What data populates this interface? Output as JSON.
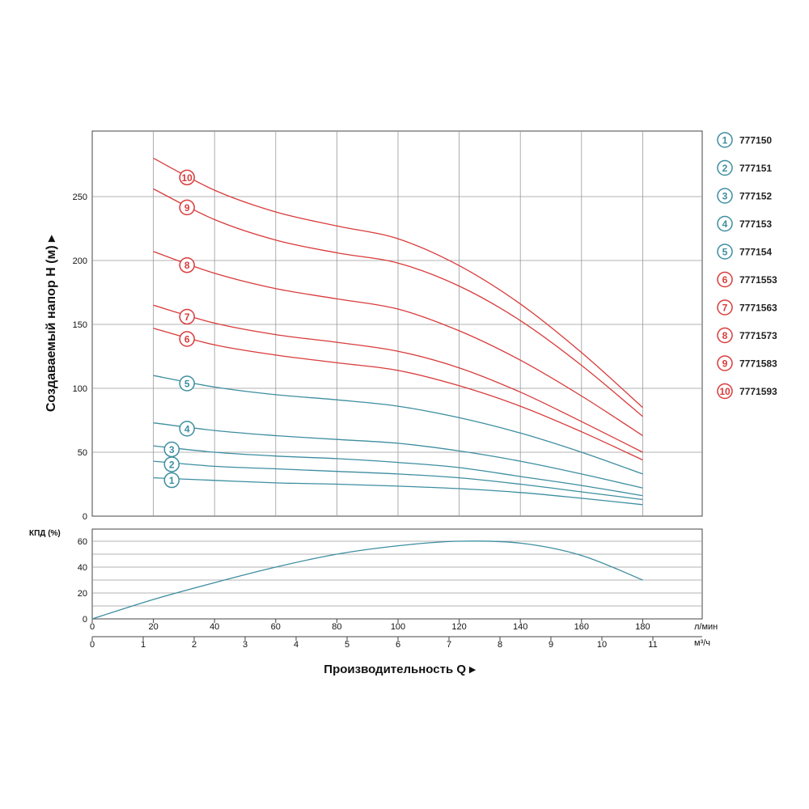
{
  "colors": {
    "teal": "#3d8ea0",
    "red": "#d93b3b",
    "grid": "#9a9a9a",
    "axis": "#444444"
  },
  "chart_data": [
    {
      "type": "line",
      "ylabel": "Создаваемый напор H (м) ▸",
      "ylim": [
        0,
        300
      ],
      "yticks": [
        0,
        50,
        100,
        150,
        200,
        250
      ],
      "xlim": [
        0,
        200
      ],
      "grid": true,
      "legend_position": "right",
      "series": [
        {
          "name": "777150",
          "badge": "1",
          "color": "teal",
          "x": [
            20,
            40,
            60,
            80,
            100,
            120,
            140,
            160,
            180
          ],
          "y": [
            30,
            28,
            26,
            25,
            23.5,
            21.5,
            18.5,
            14,
            9
          ]
        },
        {
          "name": "777151",
          "badge": "2",
          "color": "teal",
          "x": [
            20,
            40,
            60,
            80,
            100,
            120,
            140,
            160,
            180
          ],
          "y": [
            43,
            39,
            37,
            35,
            33,
            30,
            25,
            19,
            13
          ]
        },
        {
          "name": "777152",
          "badge": "3",
          "color": "teal",
          "x": [
            20,
            40,
            60,
            80,
            100,
            120,
            140,
            160,
            180
          ],
          "y": [
            55,
            50,
            47,
            45,
            42,
            38,
            31,
            24,
            16
          ]
        },
        {
          "name": "777153",
          "badge": "4",
          "color": "teal",
          "x": [
            20,
            40,
            60,
            80,
            100,
            120,
            140,
            160,
            180
          ],
          "y": [
            73,
            67,
            63,
            60,
            57,
            51,
            43,
            33,
            22
          ]
        },
        {
          "name": "777154",
          "badge": "5",
          "color": "teal",
          "x": [
            20,
            40,
            60,
            80,
            100,
            120,
            140,
            160,
            180
          ],
          "y": [
            110,
            101,
            95,
            91,
            86,
            77,
            65,
            50,
            33
          ]
        },
        {
          "name": "7771553",
          "badge": "6",
          "color": "red",
          "x": [
            20,
            40,
            60,
            80,
            100,
            120,
            140,
            160,
            180
          ],
          "y": [
            147,
            134,
            126,
            120,
            114,
            102,
            86,
            66,
            44
          ]
        },
        {
          "name": "7771563",
          "badge": "7",
          "color": "red",
          "x": [
            20,
            40,
            60,
            80,
            100,
            120,
            140,
            160,
            180
          ],
          "y": [
            165,
            151,
            142,
            136,
            129,
            116,
            97,
            74,
            50
          ]
        },
        {
          "name": "7771573",
          "badge": "8",
          "color": "red",
          "x": [
            20,
            40,
            60,
            80,
            100,
            120,
            140,
            160,
            180
          ],
          "y": [
            207,
            190,
            178,
            170,
            162,
            145,
            122,
            94,
            63
          ]
        },
        {
          "name": "7771583",
          "badge": "9",
          "color": "red",
          "x": [
            20,
            40,
            60,
            80,
            100,
            120,
            140,
            160,
            180
          ],
          "y": [
            256,
            232,
            216,
            206,
            198,
            180,
            153,
            118,
            78
          ]
        },
        {
          "name": "7771593",
          "badge": "10",
          "color": "red",
          "x": [
            20,
            40,
            60,
            80,
            100,
            120,
            140,
            160,
            180
          ],
          "y": [
            280,
            255,
            238,
            227,
            217,
            196,
            166,
            128,
            85
          ]
        }
      ],
      "badge_x": [
        26,
        26,
        26,
        31,
        31,
        31,
        31,
        31,
        31,
        31
      ]
    },
    {
      "type": "line",
      "ylabel": "КПД (%)",
      "ylim": [
        0,
        70
      ],
      "yticks": [
        0,
        20,
        40,
        60
      ],
      "xlim": [
        0,
        200
      ],
      "grid": true,
      "series": [
        {
          "name": "",
          "color": "teal",
          "x": [
            0,
            20,
            40,
            60,
            80,
            100,
            120,
            140,
            160,
            180
          ],
          "y": [
            0,
            15,
            28,
            40,
            50,
            56.5,
            60,
            58.5,
            49,
            30
          ]
        }
      ]
    }
  ],
  "x_axis": {
    "lpm_ticks": [
      0,
      20,
      40,
      60,
      80,
      100,
      120,
      140,
      160,
      180
    ],
    "lpm_unit": "л/мин",
    "m3h_ticks": [
      0,
      1,
      2,
      3,
      4,
      5,
      6,
      7,
      8,
      9,
      10,
      11
    ],
    "m3h_unit": "м³/ч",
    "title": "Производительность Q ▸"
  }
}
